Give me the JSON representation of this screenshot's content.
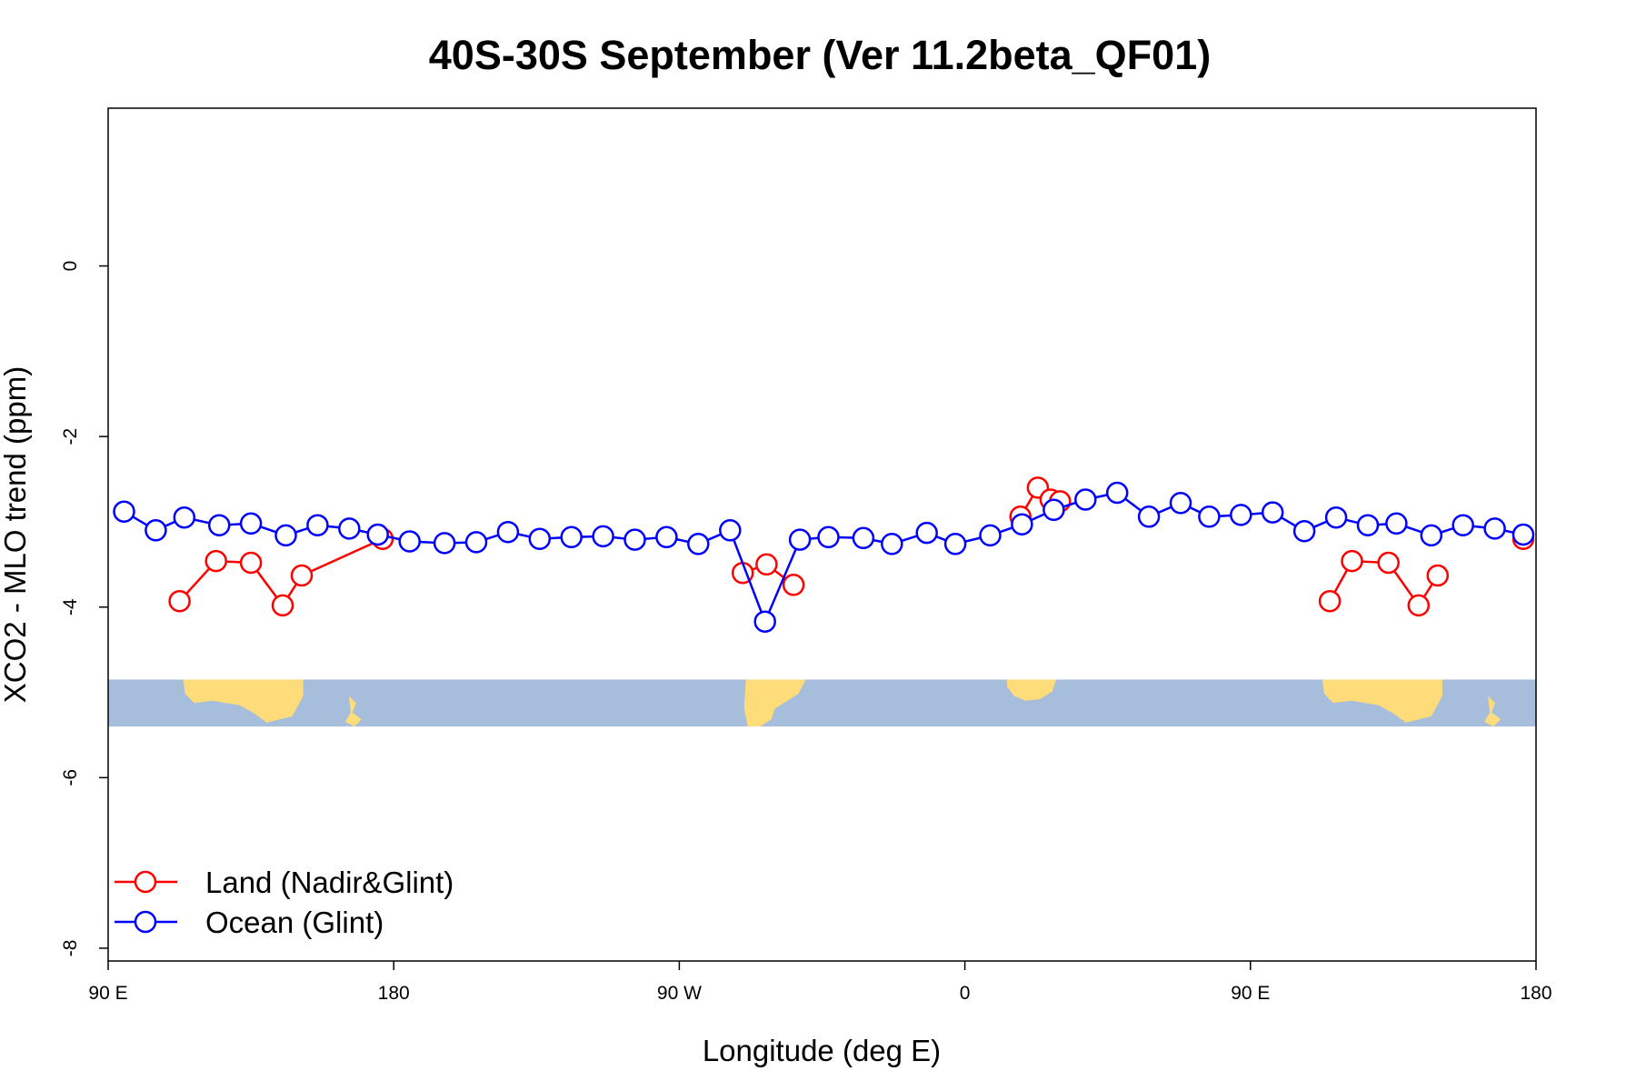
{
  "chart_data": {
    "type": "line",
    "title": "40S-30S September (Ver 11.2beta_QF01)",
    "xlabel": "Longitude (deg E)",
    "ylabel": "XCO2 - MLO trend (ppm)",
    "xlim": [
      90,
      540
    ],
    "ylim": [
      -8.15,
      1.85
    ],
    "x_ticks": [
      {
        "value": 90,
        "label": "90 E"
      },
      {
        "value": 180,
        "label": "180"
      },
      {
        "value": 270,
        "label": "90 W"
      },
      {
        "value": 360,
        "label": "0"
      },
      {
        "value": 450,
        "label": "90 E"
      },
      {
        "value": 540,
        "label": "180"
      }
    ],
    "y_ticks": [
      {
        "value": 0,
        "label": "0"
      },
      {
        "value": -2,
        "label": "-2"
      },
      {
        "value": -4,
        "label": "-4"
      },
      {
        "value": -6,
        "label": "-6"
      },
      {
        "value": -8,
        "label": "-8"
      }
    ],
    "grid": false,
    "legend_position": "bottom-left",
    "map_band": {
      "y_top": -4.85,
      "y_bottom": -5.4,
      "ocean_color": "#a6bddb",
      "land_color": "#fddc79"
    },
    "series": [
      {
        "name": "Land (Nadir&Glint)",
        "color": "#ff0000",
        "segments": [
          [
            [
              112.5,
              -3.93
            ],
            [
              124,
              -3.46
            ],
            [
              135,
              -3.48
            ],
            [
              145,
              -3.98
            ],
            [
              151,
              -3.63
            ],
            [
              176.5,
              -3.2
            ]
          ],
          [
            [
              290,
              -3.6
            ],
            [
              297.5,
              -3.5
            ],
            [
              306,
              -3.74
            ]
          ],
          [
            [
              377.5,
              -2.94
            ],
            [
              383,
              -2.6
            ],
            [
              387,
              -2.74
            ],
            [
              390,
              -2.76
            ]
          ],
          [
            [
              475,
              -3.93
            ],
            [
              482,
              -3.46
            ],
            [
              493.5,
              -3.48
            ],
            [
              503,
              -3.98
            ],
            [
              509,
              -3.63
            ]
          ],
          [
            [
              536,
              -3.2
            ]
          ]
        ]
      },
      {
        "name": "Ocean (Glint)",
        "color": "#0000ff",
        "segments": [
          [
            [
              95,
              -2.88
            ],
            [
              105,
              -3.1
            ],
            [
              114,
              -2.95
            ],
            [
              125,
              -3.04
            ],
            [
              135,
              -3.02
            ],
            [
              146,
              -3.16
            ],
            [
              156,
              -3.04
            ],
            [
              166,
              -3.08
            ],
            [
              175,
              -3.15
            ],
            [
              185,
              -3.23
            ],
            [
              196,
              -3.25
            ],
            [
              206,
              -3.24
            ],
            [
              216,
              -3.12
            ],
            [
              226,
              -3.2
            ],
            [
              236,
              -3.18
            ],
            [
              246,
              -3.17
            ],
            [
              256,
              -3.21
            ],
            [
              266,
              -3.18
            ],
            [
              276,
              -3.26
            ],
            [
              286,
              -3.1
            ],
            [
              297,
              -4.17
            ],
            [
              308,
              -3.21
            ],
            [
              317,
              -3.18
            ],
            [
              328,
              -3.19
            ],
            [
              337,
              -3.26
            ],
            [
              348,
              -3.13
            ],
            [
              357,
              -3.26
            ],
            [
              368,
              -3.16
            ],
            [
              378,
              -3.03
            ],
            [
              388,
              -2.86
            ],
            [
              398,
              -2.74
            ],
            [
              408,
              -2.66
            ],
            [
              418,
              -2.94
            ],
            [
              428,
              -2.78
            ],
            [
              437,
              -2.94
            ],
            [
              447,
              -2.92
            ],
            [
              457,
              -2.89
            ],
            [
              467,
              -3.11
            ],
            [
              477,
              -2.95
            ],
            [
              487,
              -3.04
            ],
            [
              496,
              -3.02
            ],
            [
              507,
              -3.16
            ],
            [
              517,
              -3.04
            ],
            [
              527,
              -3.08
            ],
            [
              536,
              -3.15
            ]
          ]
        ]
      }
    ]
  }
}
